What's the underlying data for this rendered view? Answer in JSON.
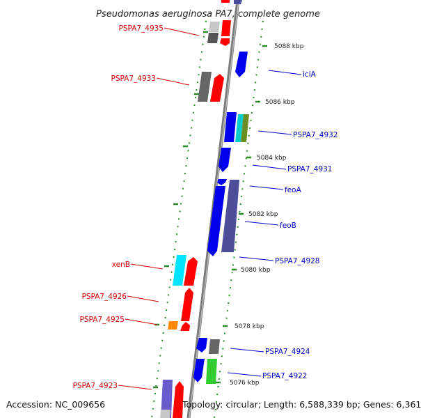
{
  "title": "Pseudomonas aeruginosa PA7, complete genome",
  "footer": {
    "accession": "Accession: NC_009656",
    "topology": "Topology: circular; Length: 6,588,339 bp; Genes: 6,361"
  },
  "colors": {
    "backbone": "#8a8a8a",
    "tick": "#2a8a2a",
    "reverse_label": "#d40000",
    "forward_label": "#0000cc"
  },
  "ruler": [
    {
      "label": "5088 kbp"
    },
    {
      "label": "5086 kbp"
    },
    {
      "label": "5084 kbp"
    },
    {
      "label": "5082 kbp"
    },
    {
      "label": "5080 kbp"
    },
    {
      "label": "5078 kbp"
    },
    {
      "label": "5076 kbp"
    }
  ],
  "gene_labels": {
    "reverse": [
      "PSPA7_4935",
      "PSPA7_4933",
      "xenB",
      "PSPA7_4926",
      "PSPA7_4925",
      "PSPA7_4923"
    ],
    "forward": [
      "iciA",
      "PSPA7_4932",
      "PSPA7_4931",
      "feoA",
      "feoB",
      "PSPA7_4928",
      "PSPA7_4924",
      "PSPA7_4922"
    ]
  }
}
